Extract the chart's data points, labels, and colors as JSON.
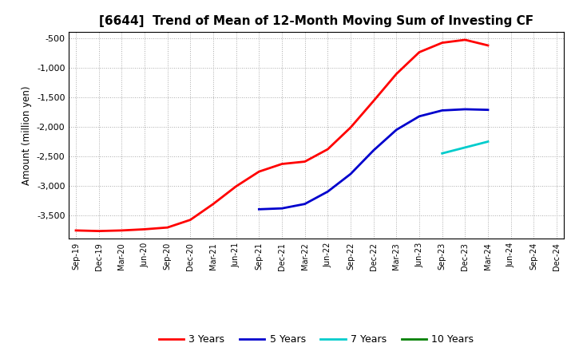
{
  "title": "[6644]  Trend of Mean of 12-Month Moving Sum of Investing CF",
  "ylabel": "Amount (million yen)",
  "background_color": "#ffffff",
  "plot_bg_color": "#ffffff",
  "grid_color": "#aaaaaa",
  "x_labels": [
    "Sep-19",
    "Dec-19",
    "Mar-20",
    "Jun-20",
    "Sep-20",
    "Dec-20",
    "Mar-21",
    "Jun-21",
    "Sep-21",
    "Dec-21",
    "Mar-22",
    "Jun-22",
    "Sep-22",
    "Dec-22",
    "Mar-23",
    "Jun-23",
    "Sep-23",
    "Dec-23",
    "Mar-24",
    "Jun-24",
    "Sep-24",
    "Dec-24"
  ],
  "ylim": [
    -3900,
    -380
  ],
  "yticks": [
    -3500,
    -3000,
    -2500,
    -2000,
    -1500,
    -1000,
    -500
  ],
  "series": {
    "3 Years": {
      "color": "#ff0000",
      "x": [
        0,
        1,
        2,
        3,
        4,
        5,
        6,
        7,
        8,
        9,
        10,
        11,
        12,
        13,
        14,
        15,
        16,
        17,
        18
      ],
      "y": [
        -3760,
        -3770,
        -3760,
        -3740,
        -3710,
        -3580,
        -3310,
        -3010,
        -2760,
        -2630,
        -2590,
        -2380,
        -2010,
        -1560,
        -1100,
        -730,
        -570,
        -520,
        -615
      ]
    },
    "5 Years": {
      "color": "#0000cd",
      "x": [
        8,
        9,
        10,
        11,
        12,
        13,
        14,
        15,
        16,
        17,
        18
      ],
      "y": [
        -3400,
        -3385,
        -3310,
        -3100,
        -2800,
        -2400,
        -2050,
        -1820,
        -1720,
        -1700,
        -1710
      ]
    },
    "7 Years": {
      "color": "#00cccc",
      "x": [
        16,
        17,
        18
      ],
      "y": [
        -2450,
        -2350,
        -2250
      ]
    },
    "10 Years": {
      "color": "#008000",
      "x": [],
      "y": []
    }
  },
  "legend_order": [
    "3 Years",
    "5 Years",
    "7 Years",
    "10 Years"
  ]
}
